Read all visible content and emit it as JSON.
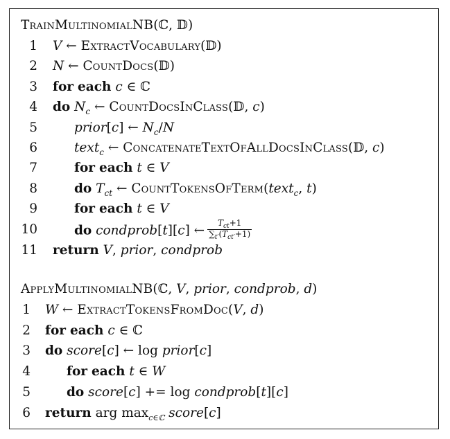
{
  "train": {
    "header": "TrainMultinomialNB(ℂ, 𝔻)",
    "lines": [
      {
        "n": "1",
        "text": "V ← ExtractVocabulary(𝔻)"
      },
      {
        "n": "2",
        "text": "N ← CountDocs(𝔻)"
      },
      {
        "n": "3",
        "text": "for each c ∈ ℂ"
      },
      {
        "n": "4",
        "text": "do N_c ← CountDocsInClass(𝔻, c)"
      },
      {
        "n": "5",
        "text": "prior[c] ← N_c/N"
      },
      {
        "n": "6",
        "text": "text_c ← ConcatenateTextOfAllDocsInClass(𝔻, c)"
      },
      {
        "n": "7",
        "text": "for each t ∈ V"
      },
      {
        "n": "8",
        "text": "do T_ct ← CountTokensOfTerm(text_c, t)"
      },
      {
        "n": "9",
        "text": "for each t ∈ V"
      },
      {
        "n": "10",
        "text": "do condprob[t][c] ← (T_ct + 1) / Σ_t′(T_ct′ + 1)"
      },
      {
        "n": "11",
        "text": "return V, prior, condprob"
      }
    ]
  },
  "apply": {
    "header": "ApplyMultinomialNB(ℂ, V, prior, condprob, d)",
    "lines": [
      {
        "n": "1",
        "text": "W ← ExtractTokensFromDoc(V, d)"
      },
      {
        "n": "2",
        "text": "for each c ∈ ℂ"
      },
      {
        "n": "3",
        "text": "do score[c] ← log prior[c]"
      },
      {
        "n": "4",
        "text": "for each t ∈ W"
      },
      {
        "n": "5",
        "text": "do score[c] += log condprob[t][c]"
      },
      {
        "n": "6",
        "text": "return arg max_c∈ℂ score[c]"
      }
    ]
  }
}
